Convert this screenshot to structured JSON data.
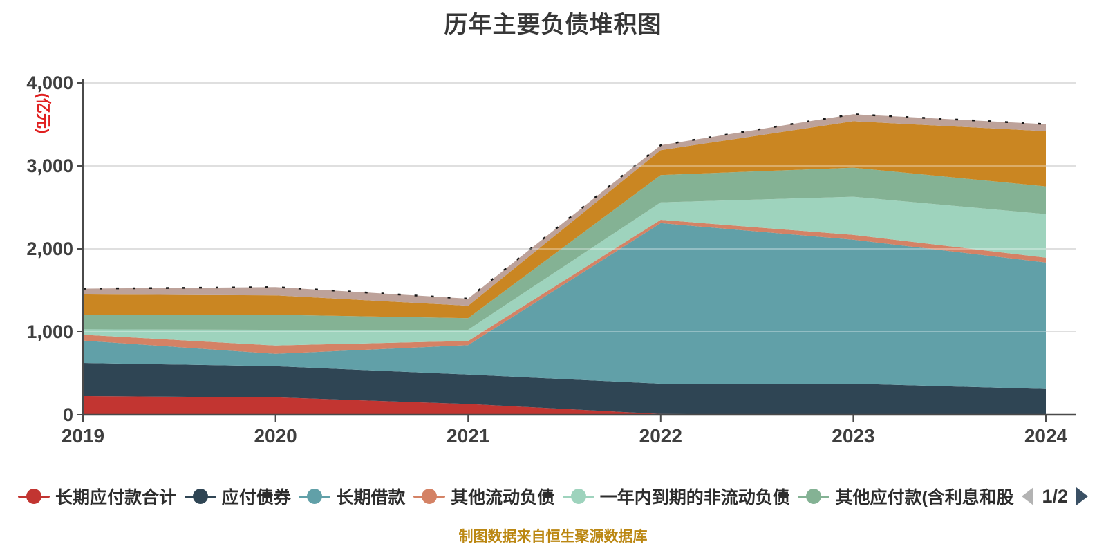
{
  "title": "历年主要负债堆积图",
  "y_axis": {
    "unit_label": "(亿元)",
    "unit_color": "#e02020",
    "tick_labels": [
      "0",
      "1,000",
      "2,000",
      "3,000",
      "4,000"
    ],
    "tick_values": [
      0,
      1000,
      2000,
      3000,
      4000
    ]
  },
  "x_axis": {
    "tick_labels": [
      "2019",
      "2020",
      "2021",
      "2022",
      "2023",
      "2024"
    ]
  },
  "legend": {
    "items": [
      {
        "label": "长期应付款合计",
        "color": "#c23531"
      },
      {
        "label": "应付债券",
        "color": "#2f4554"
      },
      {
        "label": "长期借款",
        "color": "#61a0a8"
      },
      {
        "label": "其他流动负债",
        "color": "#d48265"
      },
      {
        "label": "一年内到期的非流动负债",
        "color": "#9ed3bd"
      },
      {
        "label": "其他应付款(含利息和股",
        "color": "#84b294"
      }
    ],
    "pagination": {
      "current": "1/2",
      "prev_icon": "left-triangle-icon",
      "next_icon": "right-triangle-icon",
      "prev_color": "#b3b3b3",
      "next_color": "#3a5064"
    }
  },
  "footer": {
    "text": "制图数据来自恒生聚源数据库",
    "color": "#bb8712"
  },
  "style_colors": {
    "axis_line": "#4a4a4a",
    "grid_line": "#d0d0d0",
    "grid_overlay": "rgba(255,255,255,0.32)",
    "tick_text": "#3f3f3f",
    "total_dash_line": "#151515"
  },
  "chart_data": {
    "type": "area",
    "stacked": true,
    "title": "历年主要负债堆积图",
    "xlabel": "",
    "ylabel": "(亿元)",
    "ylim": [
      0,
      4000
    ],
    "y_tick_step": 1000,
    "grid": true,
    "legend_position": "bottom",
    "categories": [
      "2019",
      "2020",
      "2021",
      "2022",
      "2023",
      "2024"
    ],
    "series": [
      {
        "name": "长期应付款合计",
        "color": "#c23531",
        "legend_page": 1,
        "values": [
          225,
          210,
          130,
          10,
          0,
          0
        ]
      },
      {
        "name": "应付债券",
        "color": "#2f4554",
        "legend_page": 1,
        "values": [
          400,
          375,
          355,
          365,
          375,
          310
        ]
      },
      {
        "name": "长期借款",
        "color": "#61a0a8",
        "legend_page": 1,
        "values": [
          270,
          150,
          355,
          1935,
          1735,
          1525
        ]
      },
      {
        "name": "其他流动负债",
        "color": "#d48265",
        "legend_page": 1,
        "values": [
          70,
          100,
          50,
          40,
          58,
          58
        ]
      },
      {
        "name": "一年内到期的非流动负债",
        "color": "#9ed3bd",
        "legend_page": 1,
        "values": [
          65,
          190,
          135,
          210,
          460,
          525
        ]
      },
      {
        "name": "其他应付款(含利息和股",
        "color": "#84b294",
        "legend_page": 1,
        "values": [
          170,
          180,
          140,
          330,
          350,
          335
        ]
      },
      {
        "name": "",
        "color": "#ca8622",
        "legend_page": 2,
        "values": [
          250,
          235,
          150,
          300,
          560,
          665
        ]
      },
      {
        "name": "",
        "color": "#bda29a",
        "legend_page": 2,
        "values": [
          70,
          100,
          85,
          60,
          85,
          85
        ]
      }
    ]
  }
}
